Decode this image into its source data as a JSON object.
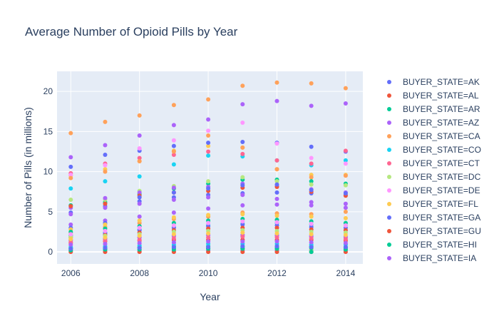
{
  "chart_data": {
    "type": "scatter",
    "title": "Average Number of Opioid Pills by Year",
    "xlabel": "Year",
    "ylabel": "Number of Pills (in millions)",
    "xlim": [
      2005.6,
      2014.5
    ],
    "ylim": [
      -1.5,
      22.5
    ],
    "x_ticks": [
      2006,
      2008,
      2010,
      2012,
      2014
    ],
    "y_ticks": [
      0,
      5,
      10,
      15,
      20
    ],
    "x_tick_labels": [
      "2006",
      "2008",
      "2010",
      "2012",
      "2014"
    ],
    "y_tick_labels": [
      "0",
      "5",
      "10",
      "15",
      "20"
    ],
    "x": [
      2006,
      2007,
      2008,
      2009,
      2010,
      2011,
      2012,
      2013,
      2014
    ],
    "grid": true,
    "legend_position": "right",
    "series": [
      {
        "name": "BUYER_STATE=AK",
        "color": "#636efa",
        "values": [
          0.1,
          0.1,
          0.1,
          0.1,
          0.2,
          0.2,
          0.2,
          0.2,
          0.2
        ]
      },
      {
        "name": "BUYER_STATE=AL",
        "color": "#ef553b",
        "values": [
          1.1,
          1.3,
          1.4,
          1.5,
          1.5,
          1.5,
          1.5,
          1.5,
          1.4
        ]
      },
      {
        "name": "BUYER_STATE=AR",
        "color": "#00cc96",
        "values": [
          0.5,
          0.6,
          0.6,
          0.7,
          0.7,
          0.7,
          0.7,
          0.7,
          0.6
        ]
      },
      {
        "name": "BUYER_STATE=AZ",
        "color": "#ab63fa",
        "values": [
          3.4,
          3.9,
          4.4,
          4.9,
          5.4,
          5.8,
          5.9,
          5.8,
          5.5
        ]
      },
      {
        "name": "BUYER_STATE=CA",
        "color": "#ffa15a",
        "values": [
          14.8,
          16.2,
          17.0,
          18.3,
          19.0,
          20.7,
          21.1,
          21.0,
          20.4
        ]
      },
      {
        "name": "BUYER_STATE=CO",
        "color": "#19d3f3",
        "values": [
          2.1,
          2.4,
          2.8,
          3.1,
          3.3,
          3.5,
          3.6,
          3.4,
          3.3
        ]
      },
      {
        "name": "BUYER_STATE=CT",
        "color": "#ff6692",
        "values": [
          1.4,
          1.6,
          1.8,
          2.0,
          2.1,
          2.1,
          2.0,
          1.9,
          1.8
        ]
      },
      {
        "name": "BUYER_STATE=DC",
        "color": "#b6e880",
        "values": [
          0.3,
          0.3,
          0.3,
          0.4,
          0.4,
          0.4,
          0.4,
          0.3,
          0.3
        ]
      },
      {
        "name": "BUYER_STATE=DE",
        "color": "#ff97ff",
        "values": [
          0.8,
          0.9,
          1.0,
          1.1,
          1.1,
          1.1,
          1.0,
          1.0,
          0.9
        ]
      },
      {
        "name": "BUYER_STATE=FL",
        "color": "#fecb52",
        "values": [
          9.5,
          10.3,
          11.3,
          12.6,
          13.2,
          13.0,
          10.3,
          9.6,
          9.6
        ]
      },
      {
        "name": "BUYER_STATE=GA",
        "color": "#636efa",
        "values": [
          4.9,
          5.7,
          6.3,
          6.8,
          7.1,
          7.3,
          7.4,
          7.3,
          7.1
        ]
      },
      {
        "name": "BUYER_STATE=GU",
        "color": "#ef553b",
        "values": [
          0.0,
          0.0,
          0.0,
          0.0,
          0.0,
          0.0,
          0.0,
          0.0,
          0.0
        ]
      },
      {
        "name": "BUYER_STATE=HI",
        "color": "#00cc96",
        "values": [
          0.4,
          0.4,
          0.5,
          0.5,
          0.5,
          0.5,
          0.5,
          0.5,
          0.5
        ]
      },
      {
        "name": "BUYER_STATE=IA",
        "color": "#ab63fa",
        "values": [
          1.5,
          1.7,
          1.8,
          2.0,
          2.1,
          2.1,
          2.1,
          2.0,
          1.9
        ]
      }
    ],
    "extra_points": [
      {
        "color": "#636efa",
        "points": [
          [
            2006,
            10.6
          ],
          [
            2007,
            12.1
          ],
          [
            2008,
            12.6
          ],
          [
            2009,
            13.2
          ],
          [
            2010,
            13.6
          ],
          [
            2011,
            13.7
          ],
          [
            2012,
            13.6
          ],
          [
            2013,
            13.1
          ],
          [
            2014,
            12.5
          ]
        ]
      },
      {
        "color": "#ab63fa",
        "points": [
          [
            2006,
            11.8
          ],
          [
            2007,
            13.3
          ],
          [
            2008,
            14.5
          ],
          [
            2009,
            15.8
          ],
          [
            2010,
            16.5
          ],
          [
            2011,
            18.4
          ],
          [
            2012,
            18.8
          ],
          [
            2013,
            18.2
          ],
          [
            2014,
            18.5
          ]
        ]
      },
      {
        "color": "#19d3f3",
        "points": [
          [
            2006,
            7.9
          ],
          [
            2007,
            8.8
          ],
          [
            2008,
            9.4
          ],
          [
            2009,
            10.9
          ],
          [
            2010,
            12.0
          ],
          [
            2011,
            11.9
          ],
          [
            2012,
            11.4
          ],
          [
            2013,
            10.8
          ],
          [
            2014,
            11.4
          ]
        ]
      },
      {
        "color": "#ff6692",
        "points": [
          [
            2006,
            9.8
          ],
          [
            2007,
            11.0
          ],
          [
            2008,
            11.7
          ],
          [
            2009,
            12.1
          ],
          [
            2010,
            12.5
          ],
          [
            2011,
            12.2
          ],
          [
            2012,
            11.4
          ],
          [
            2013,
            11.0
          ],
          [
            2014,
            12.6
          ]
        ]
      },
      {
        "color": "#ff97ff",
        "points": [
          [
            2006,
            9.6
          ],
          [
            2007,
            10.8
          ],
          [
            2008,
            12.9
          ],
          [
            2009,
            13.9
          ],
          [
            2010,
            15.1
          ],
          [
            2011,
            16.1
          ],
          [
            2012,
            13.5
          ],
          [
            2013,
            11.7
          ],
          [
            2014,
            11.0
          ]
        ]
      },
      {
        "color": "#ffa15a",
        "points": [
          [
            2006,
            9.2
          ],
          [
            2007,
            10.0
          ],
          [
            2008,
            11.3
          ],
          [
            2009,
            12.5
          ],
          [
            2010,
            14.5
          ],
          [
            2011,
            13.0
          ],
          [
            2012,
            10.3
          ],
          [
            2013,
            9.3
          ],
          [
            2014,
            9.5
          ]
        ]
      },
      {
        "color": "#00cc96",
        "points": [
          [
            2006,
            5.8
          ],
          [
            2007,
            6.2
          ],
          [
            2008,
            7.2
          ],
          [
            2009,
            7.9
          ],
          [
            2010,
            8.5
          ],
          [
            2011,
            9.0
          ],
          [
            2012,
            9.0
          ],
          [
            2013,
            8.8
          ],
          [
            2014,
            8.5
          ]
        ]
      },
      {
        "color": "#b6e880",
        "points": [
          [
            2006,
            6.5
          ],
          [
            2007,
            6.5
          ],
          [
            2008,
            7.6
          ],
          [
            2009,
            8.2
          ],
          [
            2010,
            8.8
          ],
          [
            2011,
            9.3
          ],
          [
            2012,
            8.8
          ],
          [
            2013,
            8.4
          ],
          [
            2014,
            8.3
          ]
        ]
      },
      {
        "color": "#ab63fa",
        "points": [
          [
            2006,
            5.5
          ],
          [
            2007,
            6.7
          ],
          [
            2008,
            7.4
          ],
          [
            2009,
            8.0
          ],
          [
            2010,
            8.1
          ],
          [
            2011,
            8.5
          ],
          [
            2012,
            8.2
          ],
          [
            2013,
            7.8
          ],
          [
            2014,
            7.4
          ]
        ]
      },
      {
        "color": "#ef553b",
        "points": [
          [
            2006,
            5.7
          ],
          [
            2007,
            6.0
          ],
          [
            2008,
            7.0
          ],
          [
            2009,
            7.4
          ],
          [
            2010,
            7.6
          ],
          [
            2011,
            8.0
          ],
          [
            2012,
            8.1
          ],
          [
            2013,
            7.5
          ],
          [
            2014,
            7.0
          ]
        ]
      },
      {
        "color": "#636efa",
        "points": [
          [
            2006,
            3.0
          ],
          [
            2007,
            3.6
          ],
          [
            2008,
            6.8
          ],
          [
            2009,
            7.4
          ],
          [
            2010,
            7.9
          ],
          [
            2011,
            8.3
          ],
          [
            2012,
            8.4
          ],
          [
            2013,
            7.7
          ],
          [
            2014,
            7.3
          ]
        ]
      },
      {
        "color": "#ab63fa",
        "points": [
          [
            2006,
            4.7
          ],
          [
            2007,
            5.5
          ],
          [
            2008,
            6.0
          ],
          [
            2009,
            6.5
          ],
          [
            2010,
            6.8
          ],
          [
            2011,
            7.1
          ],
          [
            2012,
            6.6
          ],
          [
            2013,
            6.2
          ],
          [
            2014,
            6.0
          ]
        ]
      },
      {
        "color": "#ffa15a",
        "points": [
          [
            2006,
            2.4
          ],
          [
            2007,
            3.1
          ],
          [
            2008,
            3.6
          ],
          [
            2009,
            4.1
          ],
          [
            2010,
            4.4
          ],
          [
            2011,
            4.9
          ],
          [
            2012,
            4.8
          ],
          [
            2013,
            4.7
          ],
          [
            2014,
            5.0
          ]
        ]
      },
      {
        "color": "#fecb52",
        "points": [
          [
            2006,
            2.8
          ],
          [
            2007,
            3.4
          ],
          [
            2008,
            3.9
          ],
          [
            2009,
            4.3
          ],
          [
            2010,
            4.6
          ],
          [
            2011,
            4.7
          ],
          [
            2012,
            4.5
          ],
          [
            2013,
            4.4
          ],
          [
            2014,
            4.2
          ]
        ]
      },
      {
        "color": "#00cc96",
        "points": [
          [
            2006,
            2.5
          ],
          [
            2007,
            2.9
          ],
          [
            2008,
            3.2
          ],
          [
            2009,
            3.6
          ],
          [
            2010,
            3.9
          ],
          [
            2011,
            4.1
          ],
          [
            2012,
            4.0
          ],
          [
            2013,
            3.8
          ],
          [
            2014,
            3.6
          ]
        ]
      },
      {
        "color": "#636efa",
        "points": [
          [
            2006,
            2.0
          ],
          [
            2007,
            2.3
          ],
          [
            2008,
            2.7
          ],
          [
            2009,
            3.0
          ],
          [
            2010,
            3.2
          ],
          [
            2011,
            3.4
          ],
          [
            2012,
            3.3
          ],
          [
            2013,
            3.1
          ],
          [
            2014,
            3.0
          ]
        ]
      },
      {
        "color": "#ef553b",
        "points": [
          [
            2006,
            1.8
          ],
          [
            2007,
            2.1
          ],
          [
            2008,
            2.4
          ],
          [
            2009,
            2.7
          ],
          [
            2010,
            2.9
          ],
          [
            2011,
            3.0
          ],
          [
            2012,
            3.0
          ],
          [
            2013,
            2.8
          ],
          [
            2014,
            2.7
          ]
        ]
      },
      {
        "color": "#b6e880",
        "points": [
          [
            2006,
            1.9
          ],
          [
            2007,
            2.0
          ],
          [
            2008,
            2.2
          ],
          [
            2009,
            2.5
          ],
          [
            2010,
            2.6
          ],
          [
            2011,
            2.7
          ],
          [
            2012,
            2.6
          ],
          [
            2013,
            2.5
          ],
          [
            2014,
            2.4
          ]
        ]
      },
      {
        "color": "#19d3f3",
        "points": [
          [
            2006,
            0.6
          ],
          [
            2007,
            0.7
          ],
          [
            2008,
            0.8
          ],
          [
            2009,
            0.9
          ],
          [
            2010,
            1.0
          ],
          [
            2011,
            1.0
          ],
          [
            2012,
            1.0
          ],
          [
            2013,
            0.9
          ],
          [
            2014,
            0.9
          ]
        ]
      },
      {
        "color": "#ff6692",
        "points": [
          [
            2006,
            1.2
          ],
          [
            2007,
            1.4
          ],
          [
            2008,
            1.5
          ],
          [
            2009,
            1.7
          ],
          [
            2010,
            1.8
          ],
          [
            2011,
            1.9
          ],
          [
            2012,
            1.8
          ],
          [
            2013,
            1.7
          ],
          [
            2014,
            1.6
          ]
        ]
      },
      {
        "color": "#fecb52",
        "points": [
          [
            2006,
            1.6
          ],
          [
            2007,
            1.8
          ],
          [
            2008,
            2.0
          ],
          [
            2009,
            2.2
          ],
          [
            2010,
            2.3
          ],
          [
            2011,
            2.4
          ],
          [
            2012,
            2.3
          ],
          [
            2013,
            2.2
          ],
          [
            2014,
            2.1
          ]
        ]
      },
      {
        "color": "#ab63fa",
        "points": [
          [
            2006,
            0.9
          ],
          [
            2007,
            1.0
          ],
          [
            2008,
            1.1
          ],
          [
            2009,
            1.2
          ],
          [
            2010,
            1.3
          ],
          [
            2011,
            1.3
          ],
          [
            2012,
            1.3
          ],
          [
            2013,
            1.2
          ],
          [
            2014,
            1.1
          ]
        ]
      },
      {
        "color": "#ff97ff",
        "points": [
          [
            2006,
            2.2
          ],
          [
            2007,
            2.6
          ],
          [
            2008,
            3.0
          ],
          [
            2009,
            3.3
          ],
          [
            2010,
            3.6
          ],
          [
            2011,
            3.8
          ],
          [
            2012,
            3.7
          ],
          [
            2013,
            3.5
          ],
          [
            2014,
            3.3
          ]
        ]
      },
      {
        "color": "#00cc96",
        "points": [
          [
            2006,
            0.2
          ],
          [
            2007,
            0.3
          ],
          [
            2008,
            0.3
          ],
          [
            2009,
            0.3
          ],
          [
            2010,
            0.4
          ],
          [
            2011,
            0.4
          ],
          [
            2012,
            0.4
          ],
          [
            2013,
            0.0
          ],
          [
            2014,
            0.3
          ]
        ]
      },
      {
        "color": "#636efa",
        "points": [
          [
            2006,
            0.4
          ],
          [
            2007,
            0.5
          ],
          [
            2008,
            0.5
          ],
          [
            2009,
            0.6
          ],
          [
            2010,
            0.6
          ],
          [
            2011,
            0.7
          ],
          [
            2012,
            0.7
          ],
          [
            2013,
            0.6
          ],
          [
            2014,
            0.6
          ]
        ]
      }
    ]
  }
}
